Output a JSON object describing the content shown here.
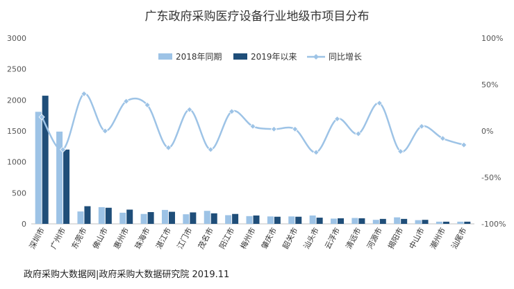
{
  "chart_data": {
    "type": "bar",
    "title": "广东政府采购医疗设备行业地级市项目分布",
    "categories": [
      "深圳市",
      "广州市",
      "东莞市",
      "佛山市",
      "惠州市",
      "珠海市",
      "湛江市",
      "江门市",
      "茂名市",
      "阳江市",
      "梅州市",
      "肇庆市",
      "韶关市",
      "汕头市",
      "云浮市",
      "清远市",
      "河源市",
      "揭阳市",
      "中山市",
      "潮州市",
      "汕尾市"
    ],
    "series": [
      {
        "name": "2018年同期",
        "kind": "bar",
        "axis": "left",
        "color": "#9DC3E6",
        "values": [
          1810,
          1490,
          200,
          270,
          180,
          160,
          225,
          155,
          210,
          140,
          125,
          120,
          120,
          135,
          85,
          95,
          65,
          105,
          60,
          35,
          35
        ]
      },
      {
        "name": "2019年以来",
        "kind": "bar",
        "axis": "left",
        "color": "#1F4E79",
        "values": [
          2070,
          1200,
          285,
          260,
          230,
          190,
          195,
          185,
          170,
          160,
          135,
          115,
          115,
          100,
          90,
          90,
          80,
          80,
          65,
          35,
          35
        ]
      },
      {
        "name": "同比增长",
        "kind": "line",
        "axis": "right",
        "color": "#9DC3E6",
        "values": [
          15,
          -20,
          40,
          0,
          32,
          28,
          -18,
          23,
          -20,
          21,
          5,
          2,
          2,
          -23,
          13,
          -3,
          30,
          -22,
          5,
          -8,
          -15
        ]
      }
    ],
    "left_axis": {
      "min": 0,
      "max": 3000,
      "ticks": [
        "0",
        "500",
        "1000",
        "1500",
        "2000",
        "2500",
        "3000"
      ]
    },
    "right_axis": {
      "min": -100,
      "max": 100,
      "ticks": [
        "-100%",
        "-50%",
        "0%",
        "50%",
        "100%"
      ]
    },
    "legend": "top-center",
    "grid": false
  },
  "source": "政府采购大数据网|政府采购大数据研究院 2019.11"
}
